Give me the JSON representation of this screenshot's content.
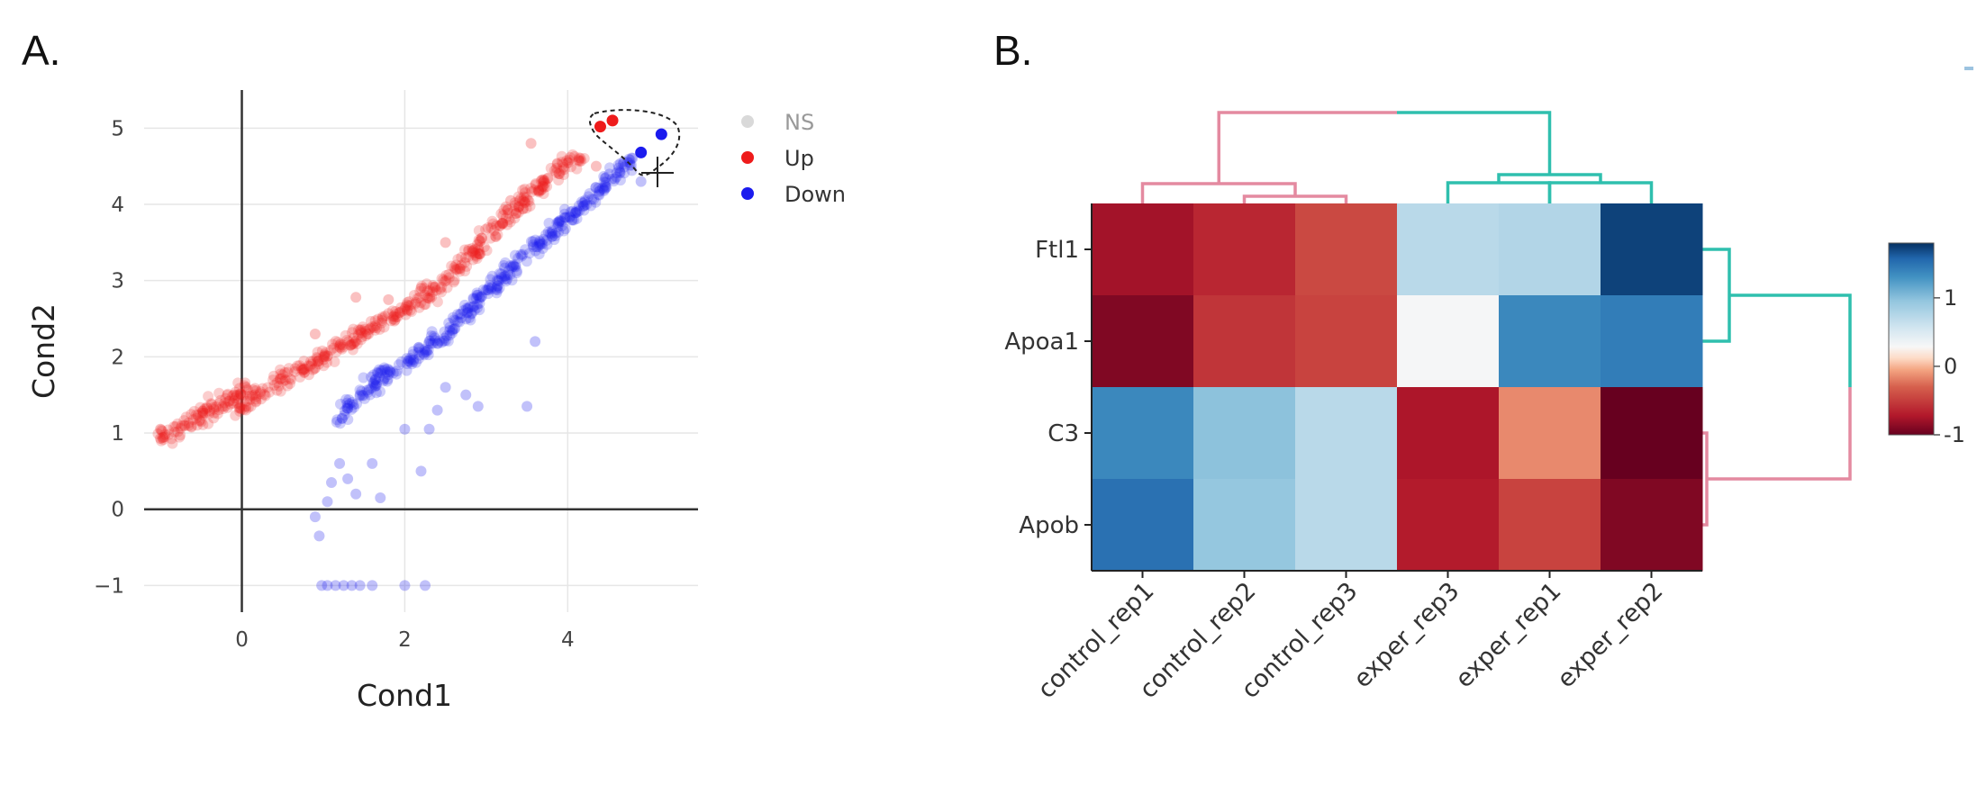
{
  "panels": {
    "a_label": "A.",
    "b_label": "B."
  },
  "chart_data": [
    {
      "type": "scatter",
      "xlabel": "Cond1",
      "ylabel": "Cond2",
      "xlim": [
        -1.2,
        5.6
      ],
      "ylim": [
        -1.35,
        5.5
      ],
      "xticks": [
        0,
        2,
        4
      ],
      "yticks": [
        -1,
        0,
        1,
        2,
        3,
        4,
        5
      ],
      "xtick_labels": [
        "0",
        "2",
        "4"
      ],
      "ytick_labels": [
        "−1",
        "0",
        "1",
        "2",
        "3",
        "4",
        "5"
      ],
      "grid": true,
      "legend_position": "top-right",
      "legend": [
        {
          "name": "NS",
          "color": "#d9d9d9",
          "text_color": "#999999"
        },
        {
          "name": "Up",
          "color": "#ee1b1b",
          "text_color": "#333333"
        },
        {
          "name": "Down",
          "color": "#1b1bee",
          "text_color": "#333333"
        }
      ],
      "series": [
        {
          "name": "Up",
          "color": "#ee1b1b",
          "opacity": 0.22,
          "trend": [
            [
              -1.0,
              1.0
            ],
            [
              -1.0,
              0.92
            ],
            [
              0.0,
              1.55
            ],
            [
              0.0,
              1.35
            ],
            [
              0.3,
              1.55
            ],
            [
              1.0,
              2.0
            ],
            [
              1.5,
              2.3
            ],
            [
              2.0,
              2.6
            ],
            [
              2.5,
              3.0
            ],
            [
              3.0,
              3.55
            ],
            [
              3.5,
              4.1
            ],
            [
              4.0,
              4.55
            ],
            [
              4.2,
              4.55
            ]
          ],
          "outliers": [
            [
              -1.0,
              1.05
            ],
            [
              -1.0,
              0.93
            ],
            [
              0.05,
              1.6
            ],
            [
              0.05,
              1.35
            ],
            [
              1.4,
              2.78
            ],
            [
              1.8,
              2.75
            ],
            [
              2.2,
              2.9
            ],
            [
              3.55,
              4.8
            ],
            [
              3.9,
              4.4
            ],
            [
              4.35,
              4.5
            ],
            [
              2.5,
              3.5
            ],
            [
              0.9,
              2.3
            ],
            [
              3.3,
              4.05
            ]
          ],
          "selected": [
            [
              4.4,
              5.02
            ],
            [
              4.55,
              5.1
            ]
          ]
        },
        {
          "name": "Down",
          "color": "#1b1bee",
          "opacity": 0.22,
          "trend": [
            [
              1.2,
              1.2
            ],
            [
              1.5,
              1.55
            ],
            [
              2.0,
              1.9
            ],
            [
              2.5,
              2.3
            ],
            [
              3.0,
              2.85
            ],
            [
              3.5,
              3.35
            ],
            [
              4.0,
              3.8
            ],
            [
              4.5,
              4.3
            ],
            [
              4.8,
              4.6
            ]
          ],
          "outliers": [
            [
              0.9,
              -0.1
            ],
            [
              0.95,
              -0.35
            ],
            [
              1.05,
              0.1
            ],
            [
              1.1,
              0.35
            ],
            [
              1.2,
              0.6
            ],
            [
              1.3,
              0.4
            ],
            [
              1.4,
              0.2
            ],
            [
              1.7,
              0.15
            ],
            [
              1.6,
              0.6
            ],
            [
              2.0,
              1.05
            ],
            [
              2.3,
              1.05
            ],
            [
              2.2,
              0.5
            ],
            [
              2.4,
              1.3
            ],
            [
              2.5,
              1.6
            ],
            [
              2.75,
              1.5
            ],
            [
              2.9,
              1.35
            ],
            [
              3.5,
              1.35
            ],
            [
              3.6,
              2.2
            ],
            [
              4.9,
              4.3
            ],
            [
              0.98,
              -1.0
            ],
            [
              1.05,
              -1.0
            ],
            [
              1.15,
              -1.0
            ],
            [
              1.25,
              -1.0
            ],
            [
              1.35,
              -1.0
            ],
            [
              1.45,
              -1.0
            ],
            [
              1.6,
              -1.0
            ],
            [
              2.0,
              -1.0
            ],
            [
              2.25,
              -1.0
            ]
          ],
          "selected": [
            [
              4.9,
              4.68
            ],
            [
              5.15,
              4.92
            ]
          ]
        }
      ],
      "annotations": {
        "lasso_selection": true,
        "cursor": "crosshair"
      }
    },
    {
      "type": "heatmap",
      "rows": [
        "Ftl1",
        "Apoa1",
        "C3",
        "Apob"
      ],
      "columns": [
        "control_rep1",
        "control_rep2",
        "control_rep3",
        "exper_rep3",
        "exper_rep1",
        "exper_rep2"
      ],
      "values": [
        [
          -0.88,
          -0.8,
          -0.68,
          0.55,
          0.6,
          1.65
        ],
        [
          -0.95,
          -0.75,
          -0.7,
          0.02,
          1.2,
          1.25
        ],
        [
          1.2,
          0.82,
          0.55,
          -0.86,
          -0.45,
          -1.0
        ],
        [
          1.3,
          0.78,
          0.55,
          -0.84,
          -0.7,
          -0.95
        ]
      ],
      "colorbar": {
        "min": -1,
        "max": 1.8,
        "ticks": [
          1,
          0,
          -1
        ],
        "tick_labels": [
          "1",
          "0",
          "-1"
        ]
      },
      "colorscale": "RdBu",
      "dendrogram_colors": {
        "cluster1": "#e48aa0",
        "cluster2": "#2fbfae"
      }
    }
  ]
}
